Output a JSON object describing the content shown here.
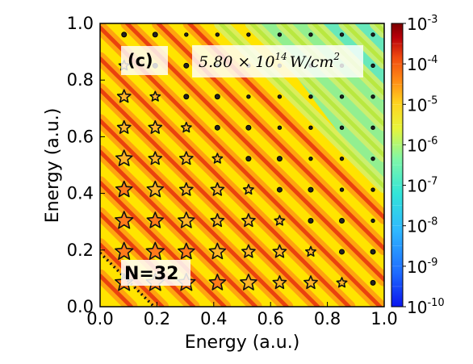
{
  "chart_data": {
    "type": "heatmap",
    "panel_label": "(c)",
    "intensity_label": "5.80 × 10",
    "intensity_exponent": "14",
    "intensity_unit": "W/cm",
    "intensity_unit_exponent": "2",
    "xlabel": "Energy (a.u.)",
    "ylabel": "Energy (a.u.)",
    "xlim": [
      0.0,
      1.0
    ],
    "ylim": [
      0.0,
      1.0
    ],
    "xticks": [
      "0.0",
      "0.2",
      "0.4",
      "0.6",
      "0.8",
      "1.0"
    ],
    "yticks": [
      "0.0",
      "0.2",
      "0.4",
      "0.6",
      "0.8",
      "1.0"
    ],
    "photon_energy": 0.1095,
    "first_peak_offset": 0.0844,
    "threshold_label": "N=32",
    "threshold_sum_energy": 0.19,
    "colorbar": {
      "scale": "log",
      "min_exp": -10,
      "max_exp": -3,
      "tick_base": "10",
      "tick_exponents": [
        "-3",
        "-4",
        "-5",
        "-6",
        "-7",
        "-8",
        "-9",
        "-10"
      ],
      "colors": [
        "#0b16ee",
        "#1e6bff",
        "#2fb9ff",
        "#33e5d8",
        "#7ff7a8",
        "#e8f53a",
        "#ffb020",
        "#f04a10",
        "#b8000a",
        "#7a0000"
      ]
    },
    "background_colors": {
      "low": "#86f0a0",
      "mid": "#fff200",
      "ridge": "#ff9a12",
      "ridge_core": "#e8380e"
    }
  }
}
